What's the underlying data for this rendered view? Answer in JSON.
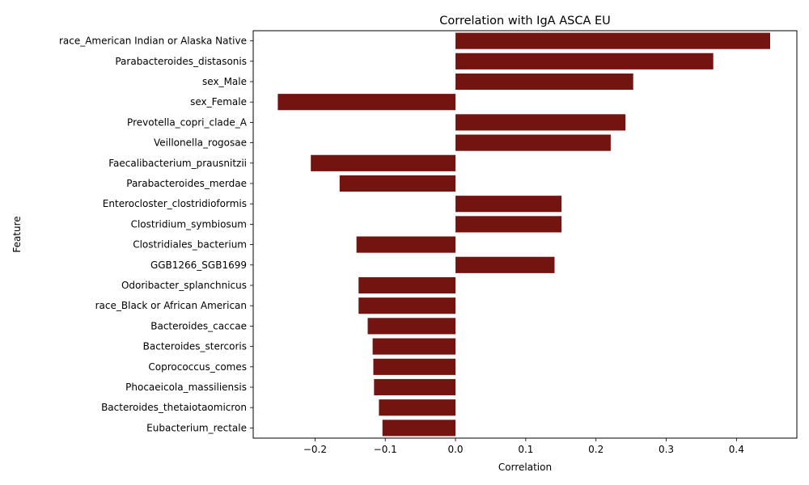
{
  "chart_data": {
    "type": "bar",
    "orientation": "horizontal",
    "title": "Correlation with IgA ASCA EU",
    "xlabel": "Correlation",
    "ylabel": "Feature",
    "xlim": [
      -0.288,
      0.486
    ],
    "xticks": [
      -0.2,
      -0.1,
      0.0,
      0.1,
      0.2,
      0.3,
      0.4
    ],
    "xtick_labels": [
      "−0.2",
      "−0.1",
      "0.0",
      "0.1",
      "0.2",
      "0.3",
      "0.4"
    ],
    "grid": false,
    "legend": "none",
    "bar_color": "#731410",
    "categories": [
      "race_American Indian or Alaska Native",
      "Parabacteroides_distasonis",
      "sex_Male",
      "sex_Female",
      "Prevotella_copri_clade_A",
      "Veillonella_rogosae",
      "Faecalibacterium_prausnitzii",
      "Parabacteroides_merdae",
      "Enterocloster_clostridioformis",
      "Clostridium_symbiosum",
      "Clostridiales_bacterium",
      "GGB1266_SGB1699",
      "Odoribacter_splanchnicus",
      "race_Black or African American",
      "Bacteroides_caccae",
      "Bacteroides_stercoris",
      "Coprococcus_comes",
      "Phocaeicola_massiliensis",
      "Bacteroides_thetaiotaomicron",
      "Eubacterium_rectale"
    ],
    "values": [
      0.448,
      0.367,
      0.253,
      -0.253,
      0.242,
      0.221,
      -0.206,
      -0.165,
      0.151,
      0.151,
      -0.141,
      0.141,
      -0.138,
      -0.138,
      -0.125,
      -0.118,
      -0.117,
      -0.116,
      -0.109,
      -0.104
    ]
  }
}
